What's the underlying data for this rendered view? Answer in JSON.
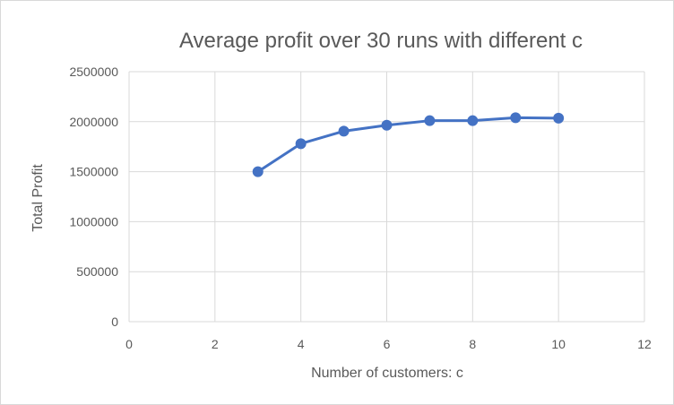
{
  "chart_data": {
    "type": "scatter",
    "title": "Average profit over 30 runs with different c",
    "xlabel": "Number of customers: c",
    "ylabel": "Total Profit",
    "xlim": [
      0,
      12
    ],
    "ylim": [
      0,
      2500000
    ],
    "x_ticks": [
      "0",
      "2",
      "4",
      "6",
      "8",
      "10",
      "12"
    ],
    "y_ticks": [
      "0",
      "500000",
      "1000000",
      "1500000",
      "2000000",
      "2500000"
    ],
    "grid": true,
    "legend": "none",
    "line_color": "#4472c4",
    "series": [
      {
        "x": [
          3,
          4,
          5,
          6,
          7,
          8,
          9,
          10
        ],
        "values": [
          1500000,
          1780000,
          1905000,
          1965000,
          2010000,
          2010000,
          2040000,
          2035000
        ]
      }
    ]
  }
}
